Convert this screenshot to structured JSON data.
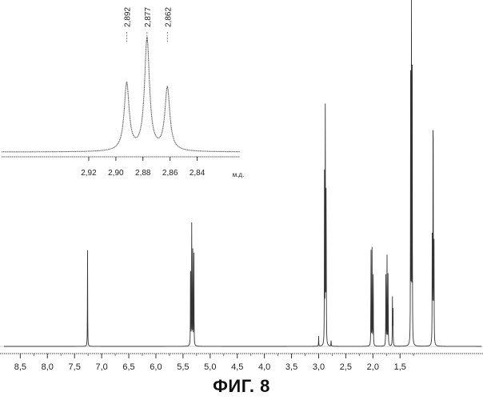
{
  "figure": {
    "caption": "ФИГ. 8"
  },
  "chart_data": [
    {
      "type": "line",
      "title": "",
      "xlabel": "",
      "ylabel": "",
      "xlim": [
        8.8,
        0.0
      ],
      "x_reversed": true,
      "grid": false,
      "x_ticks": [
        "8,5",
        "8,0",
        "7,5",
        "7,0",
        "6,5",
        "6,0",
        "5,5",
        "5,0",
        "4,5",
        "4,0",
        "3,5",
        "3,0",
        "2,5",
        "2,0",
        "1,5"
      ],
      "x_tick_values": [
        8.5,
        8.0,
        7.5,
        7.0,
        6.5,
        6.0,
        5.5,
        5.0,
        4.5,
        4.0,
        3.5,
        3.0,
        2.5,
        2.0,
        1.5
      ],
      "y_max": 1.0,
      "peaks": [
        {
          "ppm": 7.26,
          "height": 0.29
        },
        {
          "ppm": 5.36,
          "height": 0.33
        },
        {
          "ppm": 5.34,
          "height": 0.36
        },
        {
          "ppm": 5.32,
          "height": 0.35
        },
        {
          "ppm": 5.3,
          "height": 0.3
        },
        {
          "ppm": 3.0,
          "height": 0.03
        },
        {
          "ppm": 2.892,
          "height": 0.55
        },
        {
          "ppm": 2.877,
          "height": 0.81
        },
        {
          "ppm": 2.862,
          "height": 0.56
        },
        {
          "ppm": 2.77,
          "height": 0.02
        },
        {
          "ppm": 2.035,
          "height": 0.31
        },
        {
          "ppm": 2.015,
          "height": 0.31
        },
        {
          "ppm": 1.995,
          "height": 0.27
        },
        {
          "ppm": 1.76,
          "height": 0.28
        },
        {
          "ppm": 1.74,
          "height": 0.28
        },
        {
          "ppm": 1.72,
          "height": 0.24
        },
        {
          "ppm": 1.64,
          "height": 0.14
        },
        {
          "ppm": 1.63,
          "height": 0.13
        },
        {
          "ppm": 1.305,
          "height": 0.81
        },
        {
          "ppm": 1.29,
          "height": 0.99
        },
        {
          "ppm": 1.275,
          "height": 0.8
        },
        {
          "ppm": 0.905,
          "height": 0.43
        },
        {
          "ppm": 0.89,
          "height": 0.93
        },
        {
          "ppm": 0.875,
          "height": 0.42
        }
      ]
    },
    {
      "type": "line",
      "title": "",
      "xlabel": "м.д.",
      "ylabel": "",
      "xlim": [
        2.93,
        2.825
      ],
      "x_reversed": true,
      "grid": false,
      "x_ticks": [
        "2,92",
        "2,90",
        "2,88",
        "2,86",
        "2,84"
      ],
      "x_tick_values": [
        2.92,
        2.9,
        2.88,
        2.86,
        2.84
      ],
      "peak_labels": [
        "2,892",
        "2,877",
        "2,862"
      ],
      "peaks": [
        {
          "ppm": 2.892,
          "height": 0.6
        },
        {
          "ppm": 2.877,
          "height": 1.0
        },
        {
          "ppm": 2.862,
          "height": 0.56
        }
      ]
    }
  ]
}
